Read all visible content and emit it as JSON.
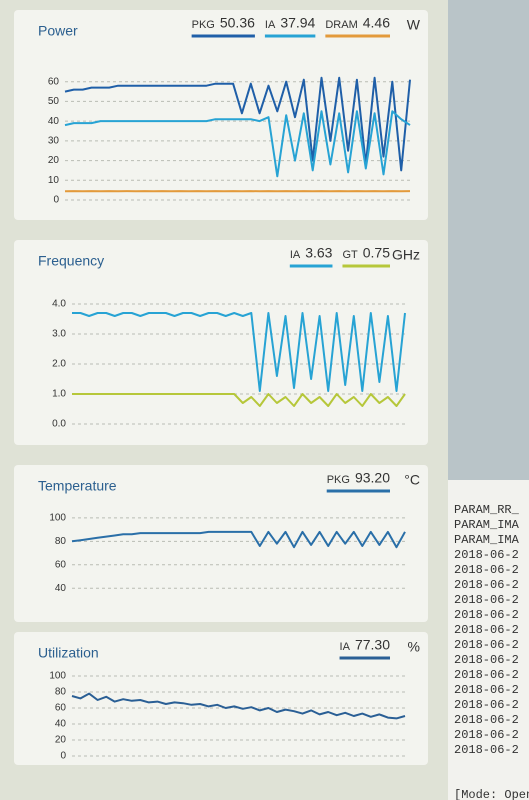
{
  "chart_data": [
    {
      "type": "line",
      "title": "Power",
      "unit": "W",
      "ylim": [
        0,
        70
      ],
      "yticks": [
        0,
        10,
        20,
        30,
        40,
        50,
        60
      ],
      "grid": true,
      "series": [
        {
          "name": "PKG",
          "readout": 50.36,
          "color": "#1f5fa8",
          "values": [
            55,
            56,
            56,
            57,
            57,
            57,
            58,
            58,
            58,
            58,
            58,
            58,
            58,
            58,
            58,
            58,
            58,
            59,
            59,
            59,
            44,
            59,
            44,
            58,
            45,
            60,
            42,
            61,
            20,
            62,
            30,
            62,
            25,
            61,
            18,
            62,
            22,
            60,
            15,
            61
          ]
        },
        {
          "name": "IA",
          "readout": 37.94,
          "color": "#27a3d4",
          "values": [
            38,
            39,
            39,
            39,
            40,
            40,
            40,
            40,
            40,
            40,
            40,
            40,
            40,
            40,
            40,
            40,
            40,
            41,
            41,
            41,
            41,
            41,
            40,
            42,
            12,
            43,
            20,
            44,
            15,
            45,
            18,
            44,
            14,
            45,
            16,
            44,
            13,
            45,
            41,
            38
          ]
        },
        {
          "name": "DRAM",
          "readout": 4.46,
          "color": "#e39a3b",
          "values": [
            4.4,
            4.5,
            4.4,
            4.5,
            4.4,
            4.5,
            4.4,
            4.5,
            4.4,
            4.5,
            4.4,
            4.5,
            4.4,
            4.5,
            4.4,
            4.5,
            4.4,
            4.5,
            4.4,
            4.5,
            4.4,
            4.5,
            4.4,
            4.5,
            4.4,
            4.5,
            4.4,
            4.5,
            4.4,
            4.5,
            4.4,
            4.5,
            4.4,
            4.5,
            4.4,
            4.5,
            4.4,
            4.5,
            4.4,
            4.5
          ]
        }
      ]
    },
    {
      "type": "line",
      "title": "Frequency",
      "unit": "GHz",
      "ylim": [
        0,
        4.2
      ],
      "yticks": [
        {
          "value": 0,
          "label": "0.0"
        },
        {
          "value": 1,
          "label": "1.0"
        },
        {
          "value": 2,
          "label": "2.0"
        },
        {
          "value": 3,
          "label": "3.0"
        },
        {
          "value": 4,
          "label": "4.0"
        }
      ],
      "grid": true,
      "series": [
        {
          "name": "IA",
          "readout": 3.63,
          "color": "#27a3d4",
          "values": [
            3.7,
            3.7,
            3.6,
            3.7,
            3.7,
            3.6,
            3.7,
            3.7,
            3.6,
            3.7,
            3.7,
            3.7,
            3.6,
            3.7,
            3.7,
            3.6,
            3.7,
            3.7,
            3.6,
            3.7,
            3.6,
            3.7,
            1.1,
            3.7,
            1.6,
            3.6,
            1.2,
            3.7,
            1.5,
            3.6,
            1.1,
            3.7,
            1.3,
            3.6,
            1.1,
            3.7,
            1.4,
            3.6,
            1.1,
            3.7
          ]
        },
        {
          "name": "GT",
          "readout": 0.75,
          "color": "#b6c73a",
          "values": [
            1.0,
            1.0,
            1.0,
            1.0,
            1.0,
            1.0,
            1.0,
            1.0,
            1.0,
            1.0,
            1.0,
            1.0,
            1.0,
            1.0,
            1.0,
            1.0,
            1.0,
            1.0,
            1.0,
            1.0,
            0.7,
            0.9,
            0.6,
            1.0,
            0.7,
            0.9,
            0.6,
            1.0,
            0.7,
            0.9,
            0.6,
            1.0,
            0.7,
            0.9,
            0.6,
            1.0,
            0.7,
            0.9,
            0.6,
            1.0
          ]
        }
      ]
    },
    {
      "type": "line",
      "title": "Temperature",
      "unit": "°C",
      "ylim": [
        30,
        105
      ],
      "yticks": [
        40,
        60,
        80,
        100
      ],
      "grid": true,
      "series": [
        {
          "name": "PKG",
          "readout": 93.2,
          "readout_label": "93.20",
          "color": "#2a6fa8",
          "values": [
            80,
            81,
            82,
            83,
            84,
            85,
            86,
            86,
            87,
            87,
            87,
            87,
            87,
            87,
            87,
            87,
            88,
            88,
            88,
            88,
            88,
            88,
            76,
            88,
            78,
            88,
            75,
            88,
            77,
            88,
            76,
            88,
            78,
            88,
            76,
            88,
            77,
            88,
            75,
            88
          ]
        }
      ]
    },
    {
      "type": "line",
      "title": "Utilization",
      "unit": "%",
      "ylim": [
        0,
        105
      ],
      "yticks": [
        0,
        20,
        40,
        60,
        80,
        100
      ],
      "grid": true,
      "series": [
        {
          "name": "IA",
          "readout": 77.3,
          "readout_label": "77.30",
          "color": "#2a5f95",
          "values": [
            75,
            72,
            78,
            70,
            74,
            68,
            71,
            69,
            70,
            67,
            68,
            65,
            67,
            66,
            64,
            65,
            62,
            64,
            60,
            62,
            59,
            61,
            57,
            60,
            55,
            58,
            56,
            53,
            57,
            52,
            55,
            51,
            54,
            50,
            53,
            49,
            52,
            48,
            47,
            50
          ]
        }
      ]
    }
  ],
  "terminal": {
    "lines": [
      "PARAM_RR_",
      "PARAM_IMA",
      "PARAM_IMA",
      "2018-06-2",
      "2018-06-2",
      "2018-06-2",
      "2018-06-2",
      "2018-06-2",
      "2018-06-2",
      "2018-06-2",
      "2018-06-2",
      "2018-06-2",
      "2018-06-2",
      "2018-06-2",
      "2018-06-2",
      "2018-06-2",
      "2018-06-2",
      "[Mode: Open"
    ]
  }
}
